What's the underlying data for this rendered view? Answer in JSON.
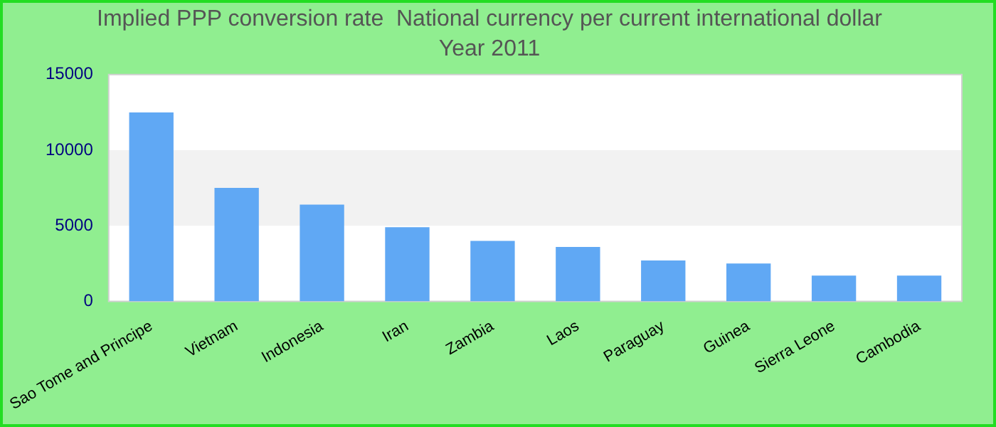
{
  "chart_data": {
    "type": "bar",
    "title": "Implied PPP conversion rate  National currency per current international dollar",
    "subtitle": "Year 2011",
    "categories": [
      "Sao Tome and Principe",
      "Vietnam",
      "Indonesia",
      "Iran",
      "Zambia",
      "Laos",
      "Paraguay",
      "Guinea",
      "Sierra Leone",
      "Cambodia"
    ],
    "values": [
      12500,
      7500,
      6400,
      4900,
      4000,
      3600,
      2700,
      2500,
      1700,
      1700
    ],
    "color": "#60a8f4",
    "ylim": [
      0,
      15000
    ],
    "yticks": [
      0,
      5000,
      10000,
      15000
    ],
    "bands": [
      {
        "axis": "y",
        "from": 5000,
        "to": 10000,
        "color": "#f2f2f2"
      }
    ]
  }
}
